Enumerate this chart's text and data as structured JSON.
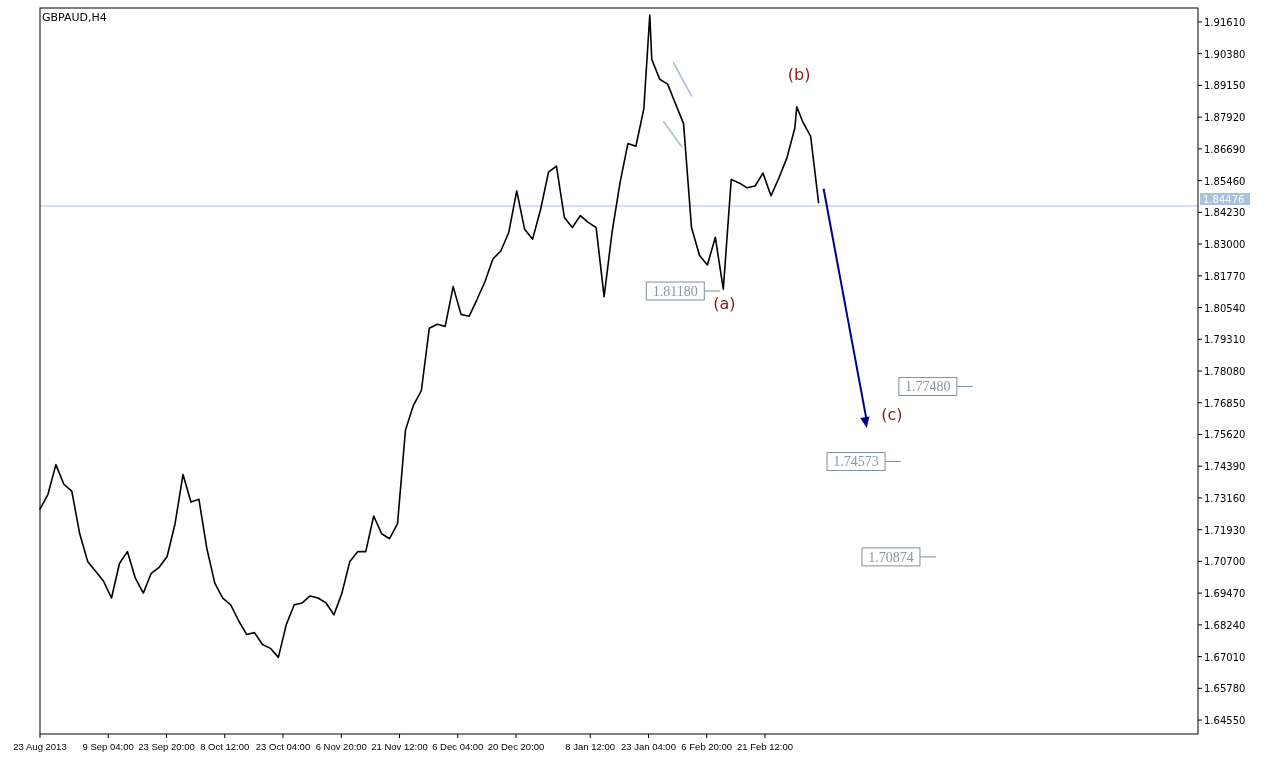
{
  "chart_data": {
    "type": "line",
    "title": "GBPAUD,H4",
    "x": [
      "2013-08-23",
      "2013-08-25",
      "2013-08-27",
      "2013-08-29",
      "2013-08-31",
      "2013-09-02",
      "2013-09-04",
      "2013-09-06",
      "2013-09-08",
      "2013-09-10",
      "2013-09-12",
      "2013-09-14",
      "2013-09-16",
      "2013-09-18",
      "2013-09-20",
      "2013-09-22",
      "2013-09-24",
      "2013-09-26",
      "2013-09-28",
      "2013-09-30",
      "2013-10-02",
      "2013-10-04",
      "2013-10-06",
      "2013-10-08",
      "2013-10-10",
      "2013-10-12",
      "2013-10-14",
      "2013-10-16",
      "2013-10-18",
      "2013-10-20",
      "2013-10-22",
      "2013-10-24",
      "2013-10-26",
      "2013-10-28",
      "2013-10-30",
      "2013-11-01",
      "2013-11-03",
      "2013-11-05",
      "2013-11-07",
      "2013-11-09",
      "2013-11-11",
      "2013-11-13",
      "2013-11-15",
      "2013-11-17",
      "2013-11-19",
      "2013-11-21",
      "2013-11-23",
      "2013-11-25",
      "2013-11-27",
      "2013-11-29",
      "2013-12-01",
      "2013-12-03",
      "2013-12-05",
      "2013-12-07",
      "2013-12-09",
      "2013-12-11",
      "2013-12-13",
      "2013-12-15",
      "2013-12-17",
      "2013-12-19",
      "2013-12-21",
      "2013-12-23",
      "2013-12-25",
      "2013-12-27",
      "2013-12-29",
      "2013-12-31",
      "2014-01-02",
      "2014-01-04",
      "2014-01-06",
      "2014-01-08",
      "2014-01-10",
      "2014-01-12",
      "2014-01-14",
      "2014-01-16",
      "2014-01-18",
      "2014-01-20",
      "2014-01-22",
      "2014-01-23T12:00",
      "2014-01-24",
      "2014-01-26",
      "2014-01-28",
      "2014-01-30",
      "2014-02-01",
      "2014-02-03",
      "2014-02-05",
      "2014-02-07",
      "2014-02-09",
      "2014-02-11",
      "2014-02-13",
      "2014-02-15",
      "2014-02-17",
      "2014-02-19",
      "2014-02-21",
      "2014-02-23",
      "2014-02-25",
      "2014-02-27",
      "2014-03-01",
      "2014-03-01T12:00",
      "2014-03-03",
      "2014-03-05",
      "2014-03-07"
    ],
    "series": [
      {
        "color": "#000000",
        "values": [
          1.7273,
          1.733,
          1.7445,
          1.7369,
          1.7342,
          1.7177,
          1.707,
          1.7032,
          1.6993,
          1.6928,
          1.7062,
          1.7108,
          1.7005,
          1.6947,
          1.7024,
          1.7047,
          1.7089,
          1.7216,
          1.7407,
          1.73,
          1.7311,
          1.712,
          1.6986,
          1.6928,
          1.6902,
          1.684,
          1.6787,
          1.6794,
          1.6748,
          1.6733,
          1.6698,
          1.6825,
          1.6902,
          1.6909,
          1.6936,
          1.6928,
          1.6909,
          1.6863,
          1.6947,
          1.707,
          1.7108,
          1.7108,
          1.7246,
          1.7177,
          1.7158,
          1.7216,
          1.7579,
          1.7675,
          1.7732,
          1.7974,
          1.7989,
          1.7981,
          1.8135,
          1.8027,
          1.802,
          1.8085,
          1.8154,
          1.8242,
          1.8273,
          1.8345,
          1.8506,
          1.8357,
          1.8319,
          1.8433,
          1.8579,
          1.8602,
          1.8403,
          1.8364,
          1.841,
          1.8384,
          1.8364,
          1.8096,
          1.8345,
          1.8537,
          1.869,
          1.8679,
          1.8824,
          1.9188,
          1.9016,
          1.8939,
          1.892,
          1.8843,
          1.8767,
          1.8364,
          1.8257,
          1.8219,
          1.8326,
          1.8125,
          1.855,
          1.8537,
          1.8518,
          1.8525,
          1.8575,
          1.8487,
          1.8556,
          1.8633,
          1.8749,
          1.8832,
          1.8774,
          1.8717,
          1.846
        ]
      },
      {
        "type": "line",
        "color": "#a9bfd8",
        "x": [
          "2014-01-29T10:00",
          "2014-02-03T00:00"
        ],
        "values": [
          1.9004,
          1.8874
        ]
      },
      {
        "type": "line",
        "color": "#a9bfd8",
        "x": [
          "2014-01-27T00:00",
          "2014-01-31T12:00"
        ],
        "values": [
          1.8774,
          1.8678
        ]
      }
    ],
    "xlim": [
      "2013-08-23T00:00",
      "2014-06-10T12:00"
    ],
    "xticks": [
      {
        "value": "2013-08-23",
        "label": "23 Aug 2013"
      },
      {
        "value": "2013-09-09T04:00",
        "label": "9 Sep 04:00"
      },
      {
        "value": "2013-09-23T20:00",
        "label": "23 Sep 20:00"
      },
      {
        "value": "2013-10-08T12:00",
        "label": "8 Oct 12:00"
      },
      {
        "value": "2013-10-23T04:00",
        "label": "23 Oct 04:00"
      },
      {
        "value": "2013-11-06T20:00",
        "label": "6 Nov 20:00"
      },
      {
        "value": "2013-11-21T12:00",
        "label": "21 Nov 12:00"
      },
      {
        "value": "2013-12-06T04:00",
        "label": "6 Dec 04:00"
      },
      {
        "value": "2013-12-20T20:00",
        "label": "20 Dec 20:00"
      },
      {
        "value": "2014-01-08T12:00",
        "label": "8 Jan 12:00"
      },
      {
        "value": "2014-01-23T04:00",
        "label": "23 Jan 04:00"
      },
      {
        "value": "2014-02-06T20:00",
        "label": "6 Feb 20:00"
      },
      {
        "value": "2014-02-21T12:00",
        "label": "21 Feb 12:00"
      }
    ],
    "ylim": [
      1.6401,
      1.9215
    ],
    "yticks": [
      {
        "value": 1.6455,
        "label": "1.64550"
      },
      {
        "value": 1.6578,
        "label": "1.65780"
      },
      {
        "value": 1.6701,
        "label": "1.67010"
      },
      {
        "value": 1.6824,
        "label": "1.68240"
      },
      {
        "value": 1.6947,
        "label": "1.69470"
      },
      {
        "value": 1.707,
        "label": "1.70700"
      },
      {
        "value": 1.7193,
        "label": "1.71930"
      },
      {
        "value": 1.7316,
        "label": "1.73160"
      },
      {
        "value": 1.7439,
        "label": "1.74390"
      },
      {
        "value": 1.7562,
        "label": "1.75620"
      },
      {
        "value": 1.7685,
        "label": "1.76850"
      },
      {
        "value": 1.7808,
        "label": "1.78080"
      },
      {
        "value": 1.7931,
        "label": "1.79310"
      },
      {
        "value": 1.8054,
        "label": "1.80540"
      },
      {
        "value": 1.8177,
        "label": "1.81770"
      },
      {
        "value": 1.83,
        "label": "1.83000"
      },
      {
        "value": 1.8423,
        "label": "1.84230"
      },
      {
        "value": 1.8546,
        "label": "1.85460"
      },
      {
        "value": 1.8669,
        "label": "1.86690"
      },
      {
        "value": 1.8792,
        "label": "1.87920"
      },
      {
        "value": 1.8915,
        "label": "1.89150"
      },
      {
        "value": 1.9038,
        "label": "1.90380"
      },
      {
        "value": 1.9161,
        "label": "1.91610"
      }
    ],
    "ref_lines": [
      {
        "axis": "y",
        "value": 1.84476,
        "label": "1.84476",
        "color": "#a9c1dc"
      }
    ],
    "annotations": [
      "1.81180",
      "(a)",
      "(b)",
      "(c)",
      "1.77480",
      "1.74573",
      "1.70874"
    ],
    "marker": "none",
    "line_style": "solid",
    "grid": false
  }
}
